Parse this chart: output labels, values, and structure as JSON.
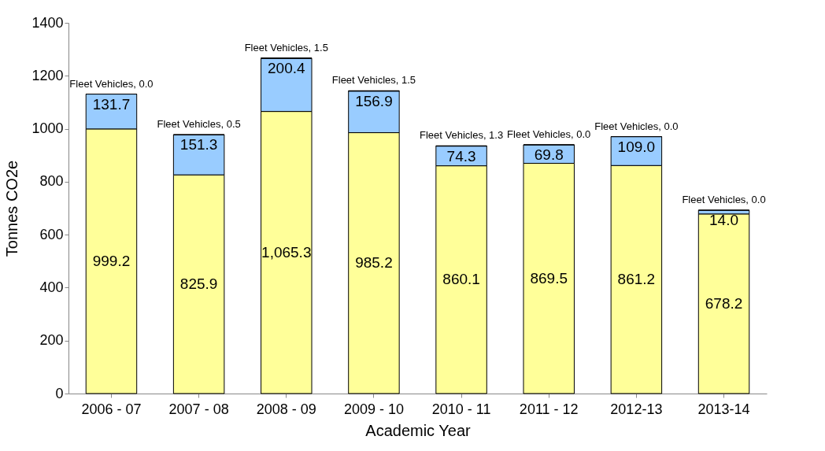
{
  "chart_data": {
    "type": "bar",
    "xlabel": "Academic Year",
    "ylabel": "Tonnes CO2e",
    "categories": [
      "2006 - 07",
      "2007 - 08",
      "2008 - 09",
      "2009 - 10",
      "2010 - 11",
      "2011 - 12",
      "2012-13",
      "2013-14"
    ],
    "stacked": true,
    "ylim": [
      0,
      1400
    ],
    "yticks": [
      0,
      200,
      400,
      600,
      800,
      1000,
      1200,
      1400
    ],
    "grid": false,
    "legend": false,
    "series": [
      {
        "color": "#ffff99",
        "values": [
          999.2,
          825.9,
          1065.3,
          985.2,
          860.1,
          869.5,
          861.2,
          678.2
        ],
        "value_labels": [
          "999.2",
          "825.9",
          "1,065.3",
          "985.2",
          "860.1",
          "869.5",
          "861.2",
          "678.2"
        ]
      },
      {
        "color": "#99ccff",
        "values": [
          131.7,
          151.3,
          200.4,
          156.9,
          74.3,
          69.8,
          109.0,
          14.0
        ],
        "value_labels": [
          "131.7",
          "151.3",
          "200.4",
          "156.9",
          "74.3",
          "69.8",
          "109.0",
          "14.0"
        ]
      },
      {
        "color": "#000000",
        "values": [
          0.0,
          0.5,
          1.5,
          1.5,
          1.3,
          0.0,
          0.0,
          0.0
        ],
        "value_labels": [
          "Fleet Vehicles, 0.0",
          "Fleet Vehicles, 0.5",
          "Fleet Vehicles, 1.5",
          "Fleet Vehicles, 1.5",
          "Fleet Vehicles, 1.3",
          "Fleet Vehicles, 0.0",
          "Fleet Vehicles, 0.0",
          "Fleet Vehicles, 0.0"
        ]
      }
    ]
  }
}
